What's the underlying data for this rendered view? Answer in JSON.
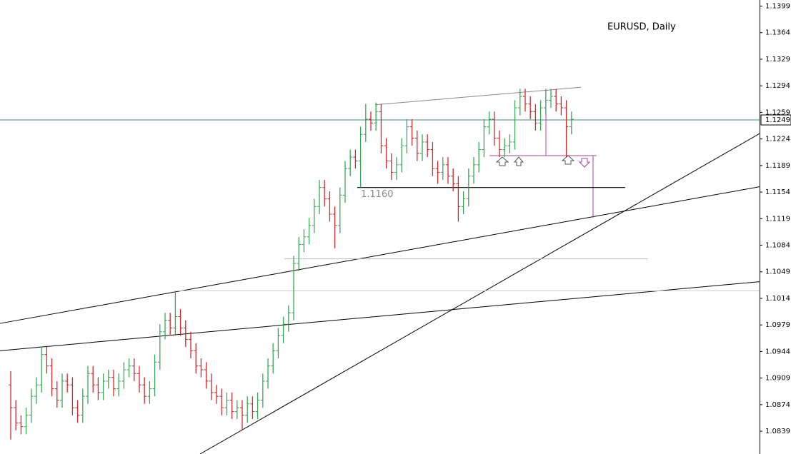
{
  "chart_data": {
    "type": "ohlc",
    "title": "EURUSD, Daily",
    "ylim": [
      1.0809,
      1.1407
    ],
    "yticks": [
      1.1399,
      1.1364,
      1.1329,
      1.1294,
      1.1259,
      1.1224,
      1.1189,
      1.1154,
      1.1119,
      1.1084,
      1.1049,
      1.1014,
      1.0979,
      1.0944,
      1.0909,
      1.0874,
      1.0839
    ],
    "up_color": "#3aa655",
    "down_color": "#d1282b",
    "current": 1.1249,
    "current_color": "#3c8c82",
    "ohlc": [
      [
        1.09,
        1.0918,
        1.0828,
        1.087
      ],
      [
        1.087,
        1.088,
        1.084,
        1.085
      ],
      [
        1.085,
        1.086,
        1.0835,
        1.0845
      ],
      [
        1.0845,
        1.087,
        1.0835,
        1.086
      ],
      [
        1.086,
        1.0895,
        1.085,
        1.0885
      ],
      [
        1.0885,
        1.091,
        1.0875,
        1.09
      ],
      [
        1.09,
        1.095,
        1.089,
        1.094
      ],
      [
        1.094,
        1.095,
        1.0915,
        1.0925
      ],
      [
        1.0925,
        1.0935,
        1.0885,
        1.0895
      ],
      [
        1.0895,
        1.0905,
        1.087,
        1.088
      ],
      [
        1.088,
        1.0915,
        1.087,
        1.0905
      ],
      [
        1.0905,
        1.0915,
        1.089,
        1.09
      ],
      [
        1.09,
        1.091,
        1.086,
        1.087
      ],
      [
        1.087,
        1.088,
        1.085,
        1.086
      ],
      [
        1.086,
        1.0895,
        1.085,
        1.0885
      ],
      [
        1.0885,
        1.0925,
        1.0875,
        1.0915
      ],
      [
        1.0915,
        1.0925,
        1.089,
        1.09
      ],
      [
        1.09,
        1.091,
        1.088,
        1.089
      ],
      [
        1.089,
        1.0915,
        1.088,
        1.0905
      ],
      [
        1.0905,
        1.092,
        1.0895,
        1.091
      ],
      [
        1.091,
        1.092,
        1.0885,
        1.0895
      ],
      [
        1.0895,
        1.0915,
        1.0885,
        1.0905
      ],
      [
        1.0905,
        1.093,
        1.0895,
        1.092
      ],
      [
        1.092,
        1.0935,
        1.091,
        1.0925
      ],
      [
        1.0925,
        1.0935,
        1.0905,
        1.0915
      ],
      [
        1.0915,
        1.0925,
        1.089,
        1.09
      ],
      [
        1.09,
        1.091,
        1.0875,
        1.0885
      ],
      [
        1.0885,
        1.0905,
        1.0875,
        1.0895
      ],
      [
        1.0895,
        1.094,
        1.0885,
        1.093
      ],
      [
        1.093,
        1.098,
        1.092,
        1.097
      ],
      [
        1.097,
        1.0995,
        1.096,
        1.0985
      ],
      [
        1.0985,
        1.0995,
        1.0965,
        1.0975
      ],
      [
        1.0975,
        1.1024,
        1.0965,
        1.099
      ],
      [
        1.099,
        1.1,
        1.0965,
        1.0975
      ],
      [
        1.0975,
        1.0985,
        1.095,
        1.096
      ],
      [
        1.096,
        1.097,
        1.0935,
        1.0945
      ],
      [
        1.0945,
        1.0955,
        1.0915,
        1.0925
      ],
      [
        1.0925,
        1.0935,
        1.091,
        1.092
      ],
      [
        1.092,
        1.093,
        1.0895,
        1.0905
      ],
      [
        1.0905,
        1.0915,
        1.088,
        1.089
      ],
      [
        1.089,
        1.09,
        1.0875,
        1.0885
      ],
      [
        1.0885,
        1.0895,
        1.086,
        1.087
      ],
      [
        1.087,
        1.089,
        1.086,
        1.088
      ],
      [
        1.088,
        1.089,
        1.0855,
        1.0865
      ],
      [
        1.0865,
        1.088,
        1.0855,
        1.087
      ],
      [
        1.087,
        1.088,
        1.084,
        1.086
      ],
      [
        1.086,
        1.0885,
        1.085,
        1.0875
      ],
      [
        1.0875,
        1.0885,
        1.0855,
        1.0865
      ],
      [
        1.0865,
        1.089,
        1.0855,
        1.088
      ],
      [
        1.088,
        1.0915,
        1.087,
        1.0905
      ],
      [
        1.0905,
        1.0935,
        1.0895,
        1.0925
      ],
      [
        1.0925,
        1.0955,
        1.0915,
        1.0945
      ],
      [
        1.0945,
        1.0975,
        1.0935,
        1.0965
      ],
      [
        1.0965,
        1.099,
        1.0955,
        1.098
      ],
      [
        1.098,
        1.1005,
        1.097,
        1.0995
      ],
      [
        1.0995,
        1.107,
        1.0985,
        1.106
      ],
      [
        1.106,
        1.1095,
        1.105,
        1.1085
      ],
      [
        1.1085,
        1.1105,
        1.1075,
        1.1095
      ],
      [
        1.1095,
        1.112,
        1.1085,
        1.111
      ],
      [
        1.111,
        1.1145,
        1.11,
        1.1135
      ],
      [
        1.1135,
        1.117,
        1.1125,
        1.116
      ],
      [
        1.116,
        1.117,
        1.1135,
        1.1145
      ],
      [
        1.1145,
        1.1155,
        1.1115,
        1.1125
      ],
      [
        1.1125,
        1.1135,
        1.108,
        1.111
      ],
      [
        1.111,
        1.116,
        1.11,
        1.115
      ],
      [
        1.115,
        1.1195,
        1.114,
        1.1185
      ],
      [
        1.1185,
        1.121,
        1.1175,
        1.12
      ],
      [
        1.12,
        1.121,
        1.1185,
        1.1195
      ],
      [
        1.1195,
        1.124,
        1.116,
        1.123
      ],
      [
        1.123,
        1.127,
        1.122,
        1.125
      ],
      [
        1.125,
        1.126,
        1.1235,
        1.1245
      ],
      [
        1.1245,
        1.1272,
        1.1235,
        1.126
      ],
      [
        1.126,
        1.127,
        1.1205,
        1.1215
      ],
      [
        1.1215,
        1.1225,
        1.1185,
        1.1195
      ],
      [
        1.1195,
        1.1205,
        1.117,
        1.118
      ],
      [
        1.118,
        1.12,
        1.117,
        1.119
      ],
      [
        1.119,
        1.1225,
        1.118,
        1.1215
      ],
      [
        1.1215,
        1.125,
        1.1205,
        1.124
      ],
      [
        1.124,
        1.125,
        1.1215,
        1.1225
      ],
      [
        1.1225,
        1.1235,
        1.1195,
        1.1205
      ],
      [
        1.1205,
        1.123,
        1.1195,
        1.122
      ],
      [
        1.122,
        1.123,
        1.12,
        1.121
      ],
      [
        1.121,
        1.122,
        1.1175,
        1.1185
      ],
      [
        1.1185,
        1.1195,
        1.1165,
        1.118
      ],
      [
        1.118,
        1.12,
        1.117,
        1.119
      ],
      [
        1.119,
        1.12,
        1.1165,
        1.1175
      ],
      [
        1.1175,
        1.1185,
        1.1155,
        1.1165
      ],
      [
        1.1165,
        1.1175,
        1.1115,
        1.1135
      ],
      [
        1.1135,
        1.1155,
        1.1125,
        1.1145
      ],
      [
        1.1145,
        1.1185,
        1.1135,
        1.1175
      ],
      [
        1.1175,
        1.12,
        1.1165,
        1.119
      ],
      [
        1.119,
        1.122,
        1.118,
        1.121
      ],
      [
        1.121,
        1.125,
        1.12,
        1.124
      ],
      [
        1.124,
        1.126,
        1.123,
        1.125
      ],
      [
        1.125,
        1.126,
        1.1215,
        1.1225
      ],
      [
        1.1225,
        1.1235,
        1.12,
        1.121
      ],
      [
        1.121,
        1.1225,
        1.12,
        1.1215
      ],
      [
        1.1215,
        1.123,
        1.1205,
        1.122
      ],
      [
        1.122,
        1.1275,
        1.121,
        1.1265
      ],
      [
        1.1265,
        1.129,
        1.1255,
        1.128
      ],
      [
        1.128,
        1.129,
        1.126,
        1.127
      ],
      [
        1.127,
        1.128,
        1.125,
        1.126
      ],
      [
        1.126,
        1.127,
        1.1235,
        1.1245
      ],
      [
        1.1245,
        1.1275,
        1.1235,
        1.1265
      ],
      [
        1.1265,
        1.129,
        1.1255,
        1.1275
      ],
      [
        1.1275,
        1.129,
        1.1265,
        1.128
      ],
      [
        1.128,
        1.129,
        1.126,
        1.127
      ],
      [
        1.127,
        1.128,
        1.1255,
        1.1265
      ],
      [
        1.1265,
        1.1275,
        1.12,
        1.124
      ],
      [
        1.124,
        1.126,
        1.123,
        1.125
      ]
    ],
    "lines": [
      {
        "x": [
          -2.08,
          145.56
        ],
        "y": [
          1.0981,
          1.1161
        ],
        "color": "#000000"
      },
      {
        "x": [
          -2.08,
          145.56
        ],
        "y": [
          1.0945,
          1.1036
        ],
        "color": "#000000"
      },
      {
        "x": [
          36.81,
          145.56
        ],
        "y": [
          1.0809,
          1.1231
        ],
        "color": "#000000"
      },
      {
        "x": [
          70.83,
          110.83
        ],
        "y": [
          1.1269,
          1.1292
        ],
        "color": "#888888"
      },
      {
        "x": [
          93.06,
          113.89
        ],
        "y": [
          1.1202,
          1.1202
        ],
        "color": "#a040a0"
      },
      {
        "x": [
          53.19,
          123.89
        ],
        "y": [
          1.1066,
          1.1066
        ],
        "color": "#bbbbbb"
      },
      {
        "x": [
          32.64,
          145.56
        ],
        "y": [
          1.1024,
          1.1024
        ],
        "color": "#cccccc"
      },
      {
        "x": [
          113.19,
          113.19
        ],
        "y": [
          1.1202,
          1.112
        ],
        "color": "#a040a0"
      },
      {
        "x": [
          104.03,
          104.03
        ],
        "y": [
          1.1287,
          1.1202
        ],
        "color": "#c040c0"
      }
    ],
    "level": {
      "x": [
        67.36,
        119.44
      ],
      "y": 1.116,
      "label": "1.1160"
    }
  }
}
